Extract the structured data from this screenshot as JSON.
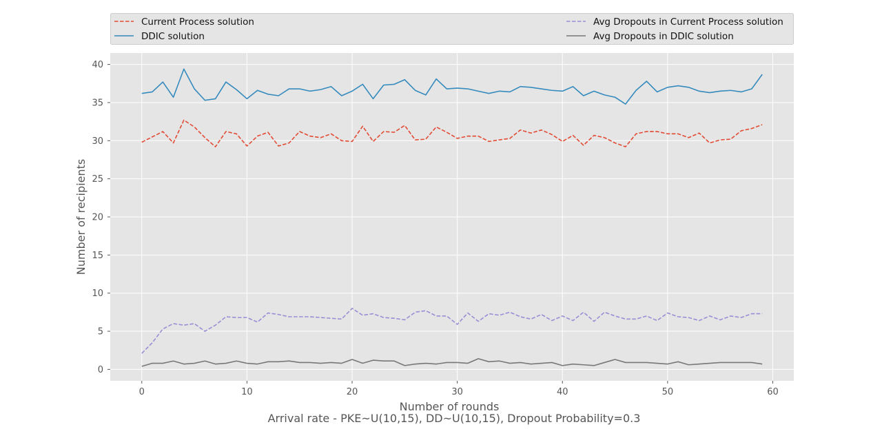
{
  "chart_data": {
    "type": "line",
    "title": "",
    "xlabel": "Number of rounds",
    "subtitle_below": "Arrival rate - PKE~U(10,15), DD~U(10,15), Dropout Probability=0.3",
    "ylabel": "Number of recipients",
    "xlim": [
      -3,
      62
    ],
    "ylim": [
      -1.5,
      41.5
    ],
    "xticks": [
      0,
      10,
      20,
      30,
      40,
      50,
      60
    ],
    "yticks": [
      0,
      5,
      10,
      15,
      20,
      25,
      30,
      35,
      40
    ],
    "grid": true,
    "legend_placement": "top",
    "x": [
      0,
      1,
      2,
      3,
      4,
      5,
      6,
      7,
      8,
      9,
      10,
      11,
      12,
      13,
      14,
      15,
      16,
      17,
      18,
      19,
      20,
      21,
      22,
      23,
      24,
      25,
      26,
      27,
      28,
      29,
      30,
      31,
      32,
      33,
      34,
      35,
      36,
      37,
      38,
      39,
      40,
      41,
      42,
      43,
      44,
      45,
      46,
      47,
      48,
      49,
      50,
      51,
      52,
      53,
      54,
      55,
      56,
      57,
      58,
      59
    ],
    "series": [
      {
        "name": "Current Process solution",
        "color": "#e24a33",
        "style": "dashed",
        "values": [
          29.8,
          30.5,
          31.2,
          29.7,
          32.7,
          31.8,
          30.4,
          29.2,
          31.2,
          30.9,
          29.3,
          30.6,
          31.1,
          29.3,
          29.7,
          31.2,
          30.6,
          30.4,
          30.9,
          30.0,
          29.9,
          31.9,
          29.9,
          31.2,
          31.1,
          32.0,
          30.1,
          30.2,
          31.8,
          31.1,
          30.3,
          30.6,
          30.6,
          29.9,
          30.1,
          30.3,
          31.4,
          31.0,
          31.4,
          30.8,
          29.9,
          30.7,
          29.4,
          30.7,
          30.4,
          29.7,
          29.2,
          30.9,
          31.2,
          31.2,
          30.9,
          30.9,
          30.4,
          31.0,
          29.7,
          30.1,
          30.2,
          31.3,
          31.6,
          32.1
        ]
      },
      {
        "name": "DDIC solution",
        "color": "#348abd",
        "style": "solid",
        "values": [
          36.2,
          36.4,
          37.7,
          35.7,
          39.4,
          36.8,
          35.3,
          35.5,
          37.7,
          36.7,
          35.5,
          36.6,
          36.1,
          35.9,
          36.8,
          36.8,
          36.5,
          36.7,
          37.1,
          35.9,
          36.5,
          37.4,
          35.5,
          37.3,
          37.4,
          38.0,
          36.6,
          36.0,
          38.1,
          36.8,
          36.9,
          36.8,
          36.5,
          36.2,
          36.5,
          36.4,
          37.1,
          37.0,
          36.8,
          36.6,
          36.5,
          37.1,
          35.9,
          36.5,
          36.0,
          35.7,
          34.8,
          36.6,
          37.8,
          36.4,
          37.0,
          37.2,
          37.0,
          36.5,
          36.3,
          36.5,
          36.6,
          36.4,
          36.8,
          38.7
        ]
      },
      {
        "name": "Avg Dropouts in Current Process solution",
        "color": "#988ed5",
        "style": "dashed",
        "values": [
          2.1,
          3.5,
          5.3,
          6.0,
          5.8,
          6.0,
          5.0,
          5.8,
          6.9,
          6.8,
          6.8,
          6.2,
          7.4,
          7.2,
          6.9,
          6.9,
          6.9,
          6.8,
          6.7,
          6.6,
          8.0,
          7.1,
          7.3,
          6.8,
          6.7,
          6.5,
          7.5,
          7.7,
          7.0,
          7.0,
          5.9,
          7.4,
          6.3,
          7.3,
          7.1,
          7.5,
          6.9,
          6.6,
          7.2,
          6.4,
          7.0,
          6.4,
          7.5,
          6.3,
          7.5,
          7.0,
          6.6,
          6.6,
          7.0,
          6.4,
          7.4,
          6.9,
          6.8,
          6.4,
          7.0,
          6.5,
          7.0,
          6.8,
          7.3,
          7.3
        ]
      },
      {
        "name": "Avg Dropouts in DDIC solution",
        "color": "#777777",
        "style": "solid",
        "values": [
          0.4,
          0.8,
          0.8,
          1.1,
          0.7,
          0.8,
          1.1,
          0.7,
          0.8,
          1.1,
          0.8,
          0.7,
          1.0,
          1.0,
          1.1,
          0.9,
          0.9,
          0.8,
          0.9,
          0.8,
          1.3,
          0.8,
          1.2,
          1.1,
          1.1,
          0.5,
          0.7,
          0.8,
          0.7,
          0.9,
          0.9,
          0.8,
          1.4,
          1.0,
          1.1,
          0.8,
          0.9,
          0.7,
          0.8,
          0.9,
          0.5,
          0.7,
          0.6,
          0.5,
          0.9,
          1.3,
          0.9,
          0.9,
          0.9,
          0.8,
          0.7,
          1.0,
          0.6,
          0.7,
          0.8,
          0.9,
          0.9,
          0.9,
          0.9,
          0.7
        ]
      }
    ]
  }
}
